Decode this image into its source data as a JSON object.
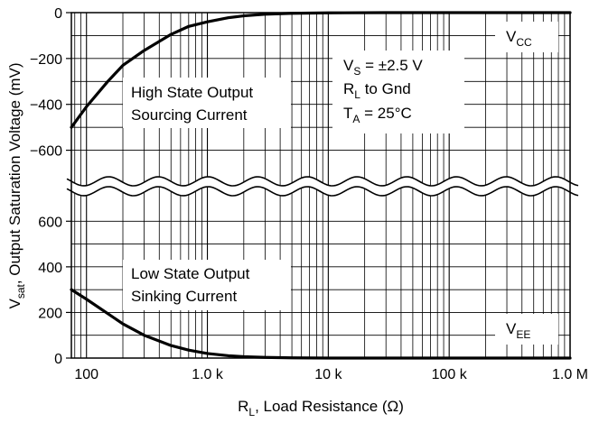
{
  "chart_data": {
    "type": "line",
    "title": "",
    "xlabel_main": "R",
    "xlabel_sub": "L",
    "xlabel_rest": ", Load Resistance (Ω)",
    "ylabel_main": "V",
    "ylabel_sub": "sat",
    "ylabel_rest": ", Output Saturation Voltage (mV)",
    "x_scale": "log",
    "xlim": [
      75,
      1000000
    ],
    "x_ticks": [
      100,
      1000,
      10000,
      100000,
      1000000
    ],
    "x_tick_labels": [
      "100",
      "1.0 k",
      "10 k",
      "100 k",
      "1.0 M"
    ],
    "upper_panel": {
      "ylim": [
        -700,
        0
      ],
      "y_ticks": [
        0,
        -200,
        -400,
        -600
      ],
      "y_tick_labels": [
        "0",
        "−200",
        "−400",
        "−600"
      ]
    },
    "lower_panel": {
      "ylim": [
        0,
        700
      ],
      "y_ticks": [
        0,
        200,
        400,
        600
      ],
      "y_tick_labels": [
        "0",
        "200",
        "400",
        "600"
      ]
    },
    "grid": true,
    "series": [
      {
        "name": "High State Output Sourcing Current",
        "panel": "upper",
        "x": [
          75,
          100,
          150,
          200,
          300,
          500,
          700,
          1000,
          1500,
          2000,
          3000,
          5000,
          10000,
          30000,
          100000,
          1000000
        ],
        "y": [
          -500,
          -410,
          -300,
          -230,
          -165,
          -95,
          -60,
          -40,
          -22,
          -14,
          -7,
          -3,
          -1,
          0,
          0,
          0
        ]
      },
      {
        "name": "Low State Output Sinking Current",
        "panel": "lower",
        "x": [
          75,
          100,
          150,
          200,
          300,
          500,
          700,
          1000,
          1500,
          2000,
          3000,
          5000,
          10000,
          30000,
          100000,
          1000000
        ],
        "y": [
          300,
          258,
          195,
          150,
          100,
          55,
          35,
          20,
          10,
          6,
          3,
          1,
          0,
          0,
          0,
          0
        ]
      }
    ],
    "annotations": {
      "high_state_line1": "High State Output",
      "high_state_line2": "Sourcing Current",
      "low_state_line1": "Low State Output",
      "low_state_line2": "Sinking Current",
      "vs_main": "V",
      "vs_sub": "S",
      "vs_rest": " = ±2.5 V",
      "rl_main": "R",
      "rl_sub": "L",
      "rl_rest": " to Gnd",
      "ta_main": "T",
      "ta_sub": "A",
      "ta_rest": " = 25°C",
      "vcc_main": "V",
      "vcc_sub": "CC",
      "vee_main": "V",
      "vee_sub": "EE"
    }
  }
}
